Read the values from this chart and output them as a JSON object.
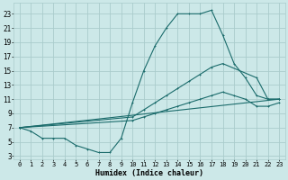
{
  "xlabel": "Humidex (Indice chaleur)",
  "bg_color": "#cce8e8",
  "grid_color": "#aacccc",
  "line_color": "#1a6b6b",
  "xlim": [
    -0.5,
    23.5
  ],
  "ylim": [
    2.5,
    24.5
  ],
  "yticks": [
    3,
    5,
    7,
    9,
    11,
    13,
    15,
    17,
    19,
    21,
    23
  ],
  "xticks": [
    0,
    1,
    2,
    3,
    4,
    5,
    6,
    7,
    8,
    9,
    10,
    11,
    12,
    13,
    14,
    15,
    16,
    17,
    18,
    19,
    20,
    21,
    22,
    23
  ],
  "line1_x": [
    0,
    1,
    2,
    3,
    4,
    5,
    6,
    7,
    8,
    9,
    10,
    11,
    12,
    13,
    14,
    15,
    16,
    17,
    18,
    19,
    20,
    21,
    22,
    23
  ],
  "line1_y": [
    7,
    6.5,
    5.5,
    5.5,
    5.5,
    4.5,
    4,
    3.5,
    3.5,
    5.5,
    10.5,
    15,
    18.5,
    21,
    23,
    23,
    23,
    23.5,
    20,
    16,
    14,
    11.5,
    11,
    11
  ],
  "line2_x": [
    0,
    10,
    11,
    12,
    13,
    14,
    15,
    16,
    17,
    18,
    21,
    22,
    23
  ],
  "line2_y": [
    7,
    8.5,
    9.5,
    10.5,
    11.5,
    12.5,
    13.5,
    14.5,
    15.5,
    16,
    14,
    11,
    11
  ],
  "line3_x": [
    0,
    23
  ],
  "line3_y": [
    7,
    11
  ],
  "line4_x": [
    0,
    10,
    11,
    12,
    13,
    14,
    15,
    16,
    17,
    18,
    19,
    20,
    21,
    22,
    23
  ],
  "line4_y": [
    7,
    8,
    8.5,
    9,
    9.5,
    10,
    10.5,
    11,
    11.5,
    12,
    11.5,
    11,
    10,
    10,
    10.5
  ]
}
